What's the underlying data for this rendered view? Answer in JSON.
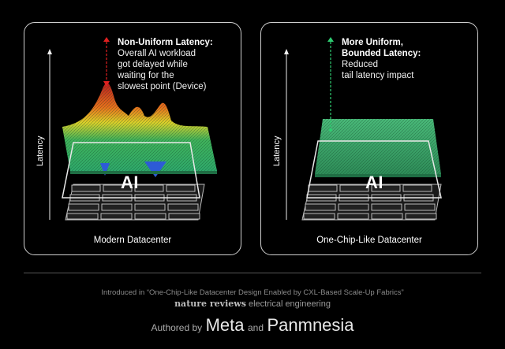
{
  "left_panel": {
    "annotation_title": "Non-Uniform Latency:",
    "annotation_lines": [
      "Overall AI workload",
      "got delayed while",
      "waiting for the",
      "slowest point (Device)"
    ],
    "axis_label": "Latency",
    "block_label": "AI",
    "caption": "Modern Datacenter",
    "pointer_color": "#e02020"
  },
  "right_panel": {
    "annotation_title_lines": [
      "More Uniform,",
      "Bounded Latency:"
    ],
    "annotation_lines": [
      "Reduced",
      "tail latency impact"
    ],
    "axis_label": "Latency",
    "block_label": "AI",
    "caption": "One-Chip-Like Datacenter",
    "pointer_color": "#2ecc71"
  },
  "footer": {
    "intro": "Introduced in “One-Chip-Like Datacenter Design Enabled by CXL-Based Scale-Up Fabrics”",
    "journal_name": "nature reviews",
    "journal_field": "electrical engineering",
    "authored_by": "Authored by",
    "author1": "Meta",
    "and": "and",
    "author2": "Panmnesia"
  }
}
